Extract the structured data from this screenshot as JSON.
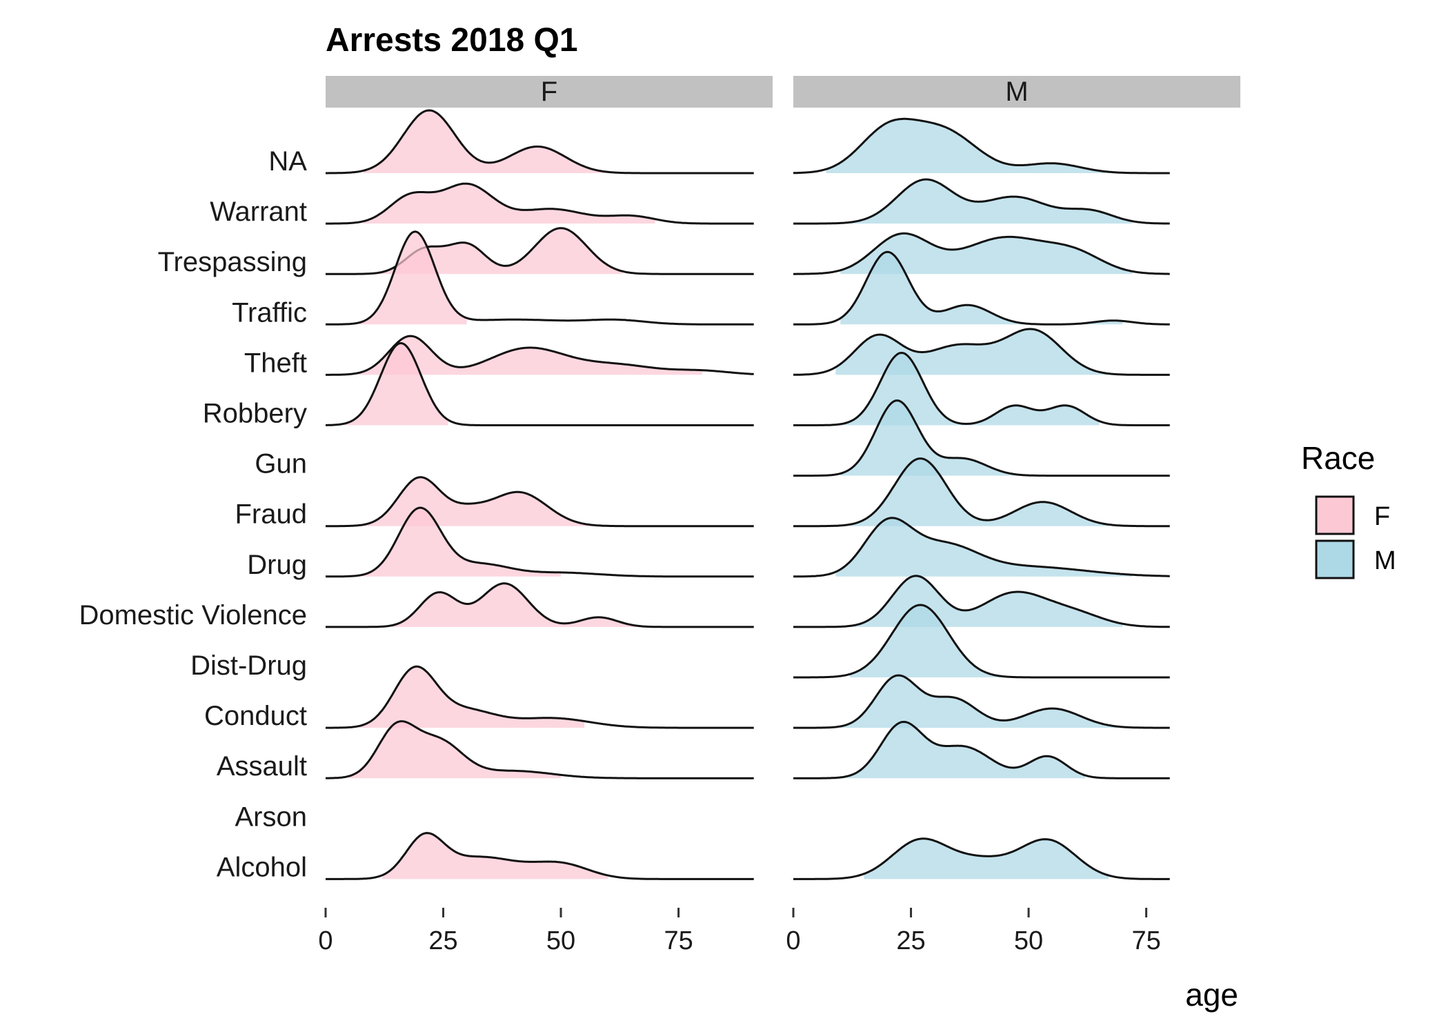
{
  "chart_data": {
    "type": "ridgeline",
    "title": "Arrests 2018 Q1",
    "xlabel": "age",
    "ylabel": "",
    "xlim": [
      0,
      95
    ],
    "xticks": [
      0,
      25,
      50,
      75
    ],
    "xtick_labels": [
      "0",
      "25",
      "50",
      "75"
    ],
    "categories": [
      "NA",
      "Warrant",
      "Trespassing",
      "Traffic",
      "Theft",
      "Robbery",
      "Gun",
      "Fraud",
      "Drug",
      "Domestic Violence",
      "Dist-Drug",
      "Conduct",
      "Assault",
      "Arson",
      "Alcohol"
    ],
    "legend": {
      "title": "Race",
      "position": "right",
      "entries": [
        {
          "label": "F",
          "color": "#fcc8d4"
        },
        {
          "label": "M",
          "color": "#add8e6"
        }
      ]
    },
    "panels": [
      {
        "strip": "F",
        "fill": "#fcc8d4",
        "series": [
          {
            "category": "NA",
            "x_range": [
              0,
              91
            ],
            "fill_range": [
              8,
              65
            ],
            "peaks": [
              [
                22,
                1.3,
                5.5
              ],
              [
                45,
                0.55,
                6
              ]
            ]
          },
          {
            "category": "Warrant",
            "x_range": [
              0,
              91
            ],
            "fill_range": [
              8,
              70
            ],
            "peaks": [
              [
                18,
                0.55,
                4.5
              ],
              [
                30,
                0.8,
                5.5
              ],
              [
                48,
                0.3,
                7
              ],
              [
                65,
                0.15,
                5
              ]
            ]
          },
          {
            "category": "Trespassing",
            "x_range": [
              0,
              91
            ],
            "fill_range": [
              9,
              63
            ],
            "peaks": [
              [
                21,
                0.5,
                4
              ],
              [
                30,
                0.6,
                4
              ],
              [
                50,
                0.95,
                5.5
              ]
            ]
          },
          {
            "category": "Traffic",
            "x_range": [
              0,
              91
            ],
            "fill_range": [
              7,
              30
            ],
            "peaks": [
              [
                19,
                1.9,
                4.2
              ],
              [
                40,
                0.1,
                12
              ],
              [
                62,
                0.08,
                6
              ]
            ]
          },
          {
            "category": "Theft",
            "x_range": [
              0,
              91
            ],
            "fill_range": [
              7,
              80
            ],
            "peaks": [
              [
                18,
                0.8,
                4.5
              ],
              [
                43,
                0.55,
                8
              ],
              [
                62,
                0.2,
                8
              ],
              [
                80,
                0.08,
                6
              ]
            ]
          },
          {
            "category": "Robbery",
            "x_range": [
              0,
              91
            ],
            "fill_range": [
              4,
              26
            ],
            "peaks": [
              [
                16,
                1.7,
                4.3
              ]
            ]
          },
          {
            "category": "Gun",
            "x_range": [
              0,
              91
            ],
            "fill_range": [
              0,
              0
            ],
            "peaks": []
          },
          {
            "category": "Fraud",
            "x_range": [
              0,
              91
            ],
            "fill_range": [
              7,
              57
            ],
            "peaks": [
              [
                20,
                1.0,
                4.5
              ],
              [
                41,
                0.7,
                6
              ],
              [
                30,
                0.25,
                4
              ]
            ]
          },
          {
            "category": "Drug",
            "x_range": [
              0,
              91
            ],
            "fill_range": [
              7,
              50
            ],
            "peaks": [
              [
                20,
                1.4,
                4.5
              ],
              [
                33,
                0.25,
                6
              ],
              [
                50,
                0.08,
                8
              ]
            ]
          },
          {
            "category": "Domestic Violence",
            "x_range": [
              0,
              91
            ],
            "fill_range": [
              12,
              66
            ],
            "peaks": [
              [
                24,
                0.7,
                4
              ],
              [
                38,
                0.9,
                5
              ],
              [
                58,
                0.2,
                4
              ]
            ]
          },
          {
            "category": "Dist-Drug",
            "x_range": [
              0,
              91
            ],
            "fill_range": [
              0,
              0
            ],
            "peaks": []
          },
          {
            "category": "Conduct",
            "x_range": [
              0,
              91
            ],
            "fill_range": [
              7,
              55
            ],
            "peaks": [
              [
                19,
                1.2,
                4.5
              ],
              [
                30,
                0.35,
                6
              ],
              [
                48,
                0.2,
                8
              ]
            ]
          },
          {
            "category": "Assault",
            "x_range": [
              0,
              91
            ],
            "fill_range": [
              5,
              50
            ],
            "peaks": [
              [
                15,
                1.0,
                4
              ],
              [
                24,
                0.75,
                5
              ],
              [
                40,
                0.15,
                8
              ]
            ]
          },
          {
            "category": "Arson",
            "x_range": [
              0,
              91
            ],
            "fill_range": [
              0,
              0
            ],
            "peaks": []
          },
          {
            "category": "Alcohol",
            "x_range": [
              0,
              91
            ],
            "fill_range": [
              12,
              60
            ],
            "peaks": [
              [
                21,
                0.8,
                4
              ],
              [
                33,
                0.45,
                8
              ],
              [
                50,
                0.3,
                6
              ]
            ]
          }
        ]
      },
      {
        "strip": "M",
        "fill": "#add8e6",
        "series": [
          {
            "category": "NA",
            "x_range": [
              0,
              80
            ],
            "fill_range": [
              7,
              68
            ],
            "peaks": [
              [
                20,
                0.85,
                6
              ],
              [
                32,
                0.85,
                7
              ],
              [
                55,
                0.2,
                6
              ]
            ]
          },
          {
            "category": "Warrant",
            "x_range": [
              0,
              80
            ],
            "fill_range": [
              10,
              72
            ],
            "peaks": [
              [
                28,
                0.9,
                6
              ],
              [
                47,
                0.55,
                7
              ],
              [
                63,
                0.25,
                5
              ]
            ]
          },
          {
            "category": "Trespassing",
            "x_range": [
              0,
              80
            ],
            "fill_range": [
              10,
              72
            ],
            "peaks": [
              [
                23,
                0.8,
                6
              ],
              [
                45,
                0.75,
                9
              ],
              [
                60,
                0.35,
                6
              ]
            ]
          },
          {
            "category": "Traffic",
            "x_range": [
              0,
              80
            ],
            "fill_range": [
              10,
              70
            ],
            "peaks": [
              [
                20,
                1.5,
                4.5
              ],
              [
                37,
                0.4,
                5
              ],
              [
                68,
                0.08,
                4
              ]
            ]
          },
          {
            "category": "Theft",
            "x_range": [
              0,
              80
            ],
            "fill_range": [
              9,
              70
            ],
            "peaks": [
              [
                18,
                0.8,
                5
              ],
              [
                35,
                0.6,
                7
              ],
              [
                51,
                0.9,
                6
              ]
            ]
          },
          {
            "category": "Robbery",
            "x_range": [
              0,
              80
            ],
            "fill_range": [
              10,
              65
            ],
            "peaks": [
              [
                23,
                1.5,
                4.5
              ],
              [
                47,
                0.4,
                4
              ],
              [
                58,
                0.4,
                4
              ]
            ]
          },
          {
            "category": "Gun",
            "x_range": [
              0,
              80
            ],
            "fill_range": [
              10,
              48
            ],
            "peaks": [
              [
                22,
                1.55,
                4.5
              ],
              [
                36,
                0.35,
                5
              ]
            ]
          },
          {
            "category": "Fraud",
            "x_range": [
              0,
              80
            ],
            "fill_range": [
              12,
              67
            ],
            "peaks": [
              [
                27,
                1.4,
                5.5
              ],
              [
                53,
                0.5,
                6
              ]
            ]
          },
          {
            "category": "Drug",
            "x_range": [
              0,
              80
            ],
            "fill_range": [
              9,
              72
            ],
            "peaks": [
              [
                20,
                1.05,
                5
              ],
              [
                32,
                0.6,
                7
              ],
              [
                50,
                0.2,
                12
              ]
            ]
          },
          {
            "category": "Domestic Violence",
            "x_range": [
              0,
              80
            ],
            "fill_range": [
              12,
              70
            ],
            "peaks": [
              [
                26,
                1.05,
                5
              ],
              [
                47,
                0.7,
                7
              ],
              [
                60,
                0.25,
                6
              ]
            ]
          },
          {
            "category": "Dist-Drug",
            "x_range": [
              0,
              80
            ],
            "fill_range": [
              12,
              45
            ],
            "peaks": [
              [
                27,
                1.5,
                6
              ]
            ]
          },
          {
            "category": "Conduct",
            "x_range": [
              0,
              80
            ],
            "fill_range": [
              10,
              70
            ],
            "peaks": [
              [
                22,
                1.05,
                4.5
              ],
              [
                34,
                0.6,
                5
              ],
              [
                55,
                0.4,
                6
              ]
            ]
          },
          {
            "category": "Assault",
            "x_range": [
              0,
              80
            ],
            "fill_range": [
              10,
              62
            ],
            "peaks": [
              [
                23,
                1.1,
                4.5
              ],
              [
                36,
                0.65,
                6
              ],
              [
                54,
                0.45,
                4
              ]
            ]
          },
          {
            "category": "Arson",
            "x_range": [
              0,
              80
            ],
            "fill_range": [
              0,
              0
            ],
            "peaks": []
          },
          {
            "category": "Alcohol",
            "x_range": [
              0,
              80
            ],
            "fill_range": [
              15,
              67
            ],
            "peaks": [
              [
                27,
                0.8,
                6
              ],
              [
                54,
                0.8,
                6
              ],
              [
                40,
                0.35,
                6
              ]
            ]
          }
        ]
      }
    ]
  }
}
